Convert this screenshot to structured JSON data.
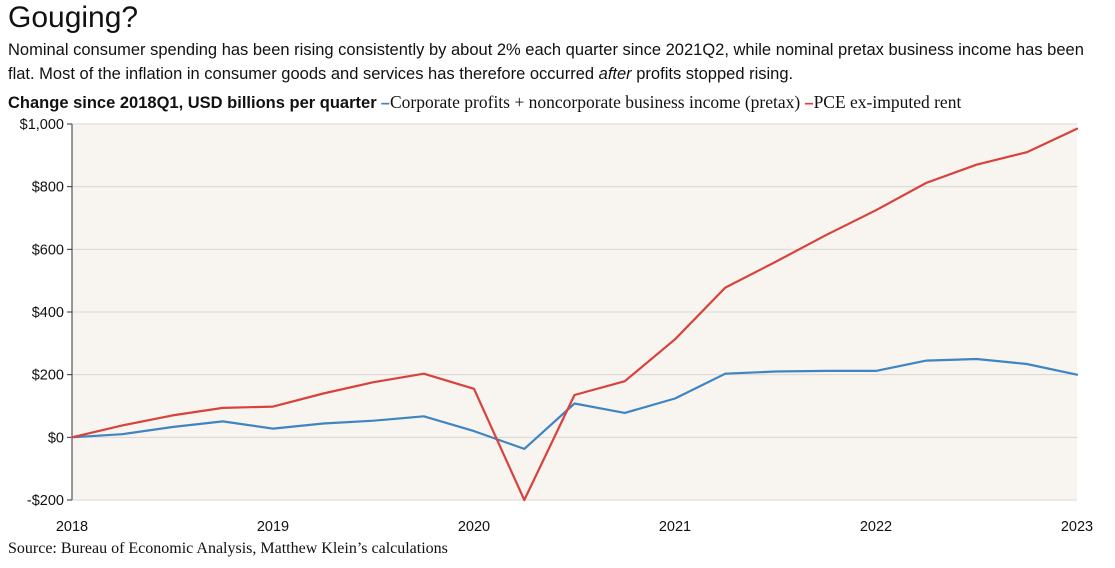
{
  "title": "Gouging?",
  "subtitle_part1": "Nominal consumer spending has been rising consistently by about 2% each quarter since 2021Q2, while nominal pretax business income has been flat. Most of the inflation in consumer goods and services has therefore occurred ",
  "subtitle_emph": "after",
  "subtitle_part2": " profits stopped rising.",
  "source": "Source: Bureau of Economic Analysis, Matthew Klein’s calculations",
  "chart_data": {
    "type": "line",
    "title": "Change since 2018Q1, USD billions per quarter",
    "xlabel": "",
    "ylabel": "",
    "ylim": [
      -200,
      1000
    ],
    "xlim": [
      "2018Q1",
      "2023Q1"
    ],
    "y_ticks": [
      -200,
      0,
      200,
      400,
      600,
      800,
      1000
    ],
    "y_tick_labels": [
      "-$200",
      "$0",
      "$200",
      "$400",
      "$600",
      "$800",
      "$1,000"
    ],
    "x_ticks": [
      "2018",
      "2019",
      "2020",
      "2021",
      "2022",
      "2023"
    ],
    "grid": "horizontal",
    "legend": "top-left",
    "background": "#f8f4f0",
    "x": [
      "2018Q1",
      "2018Q2",
      "2018Q3",
      "2018Q4",
      "2019Q1",
      "2019Q2",
      "2019Q3",
      "2019Q4",
      "2020Q1",
      "2020Q2",
      "2020Q3",
      "2020Q4",
      "2021Q1",
      "2021Q2",
      "2021Q3",
      "2021Q4",
      "2022Q1",
      "2022Q2",
      "2022Q3",
      "2022Q4",
      "2023Q1"
    ],
    "series": [
      {
        "name": "Corporate profits + noncorporate business income (pretax)",
        "color": "#3f85c2",
        "values": [
          0,
          10,
          33,
          51,
          28,
          44,
          53,
          67,
          20,
          -37,
          108,
          78,
          124,
          203,
          210,
          212,
          212,
          245,
          250,
          234,
          200
        ]
      },
      {
        "name": "PCE ex-imputed rent",
        "color": "#d9423c",
        "values": [
          0,
          38,
          70,
          94,
          98,
          140,
          176,
          203,
          155,
          -200,
          135,
          179,
          313,
          478,
          560,
          645,
          725,
          812,
          870,
          910,
          985
        ]
      }
    ]
  }
}
